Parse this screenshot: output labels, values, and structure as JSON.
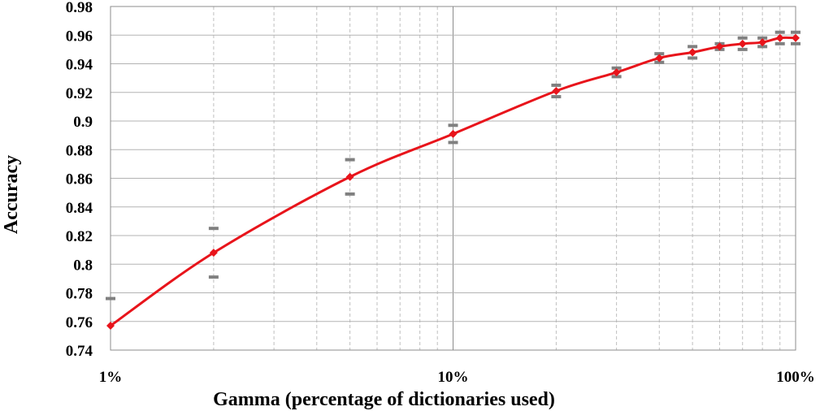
{
  "chart_data": {
    "type": "line",
    "title": "",
    "xlabel": "Gamma (percentage of dictionaries used)",
    "ylabel": "Accuracy",
    "x_scale": "log",
    "xlim": [
      1,
      100
    ],
    "ylim": [
      0.74,
      0.98
    ],
    "x_ticks": [
      1,
      10,
      100
    ],
    "x_tick_labels": [
      "1%",
      "10%",
      "100%"
    ],
    "y_ticks": [
      0.74,
      0.76,
      0.78,
      0.8,
      0.82,
      0.84,
      0.86,
      0.88,
      0.9,
      0.92,
      0.94,
      0.96,
      0.98
    ],
    "y_tick_labels": [
      "0.74",
      "0.76",
      "0.78",
      "0.8",
      "0.82",
      "0.84",
      "0.86",
      "0.88",
      "0.9",
      "0.92",
      "0.94",
      "0.96",
      "0.98"
    ],
    "grid": true,
    "legend": "none",
    "series": [
      {
        "color": "#e8141b",
        "marker": "diamond",
        "x": [
          1,
          2,
          5,
          10,
          20,
          30,
          40,
          50,
          60,
          70,
          80,
          90,
          100
        ],
        "values": [
          0.757,
          0.808,
          0.861,
          0.891,
          0.921,
          0.934,
          0.944,
          0.948,
          0.952,
          0.954,
          0.955,
          0.958,
          0.958
        ],
        "error_upper": [
          0.776,
          0.825,
          0.873,
          0.897,
          0.925,
          0.937,
          0.947,
          0.952,
          0.954,
          0.958,
          0.958,
          0.962,
          0.962
        ],
        "error_lower": [
          null,
          0.791,
          0.849,
          0.885,
          0.917,
          0.931,
          0.941,
          0.944,
          0.95,
          0.95,
          0.952,
          0.954,
          0.954
        ]
      }
    ],
    "error_bar_color": "#808080"
  }
}
